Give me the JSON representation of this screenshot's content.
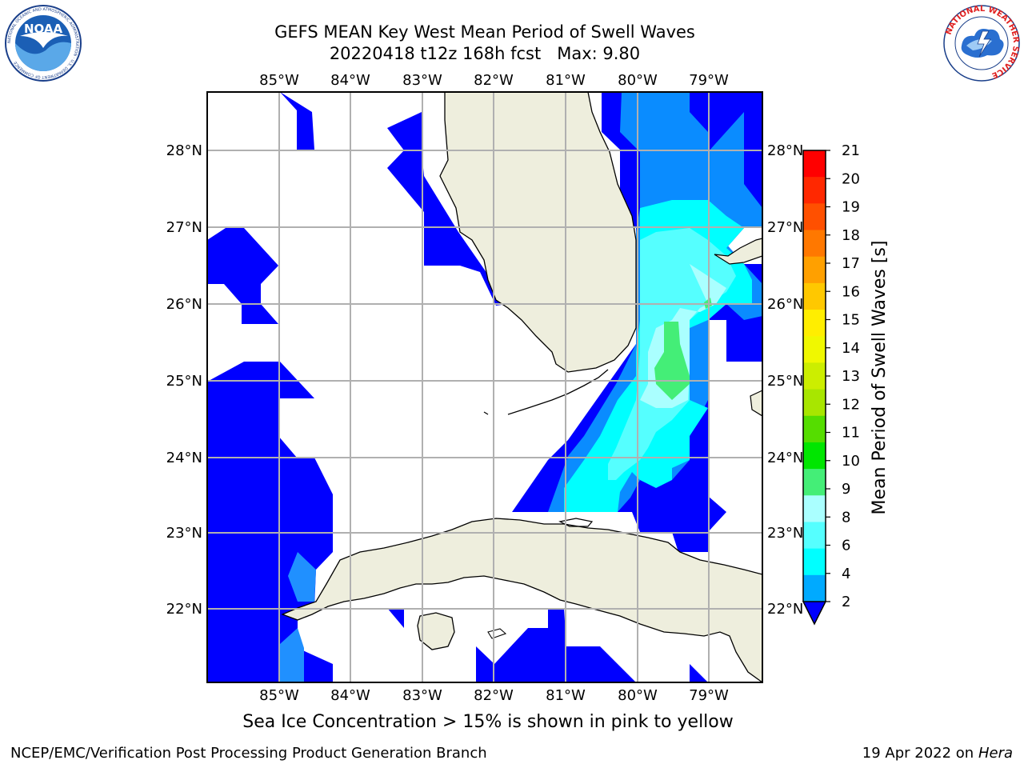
{
  "header": {
    "title_line1": "GEFS MEAN Key West Mean Period of Swell Waves",
    "title_line2": "20220418 t12z 168h fcst   Max: 9.80"
  },
  "logos": {
    "left_text": "NOAA",
    "left_ring_text": "NATIONAL OCEANIC AND ATMOSPHERIC ADMINISTRATION · U.S. DEPARTMENT OF COMMERCE",
    "right_ring_text": "NATIONAL WEATHER SERVICE"
  },
  "map": {
    "lon_labels": [
      "85°W",
      "84°W",
      "83°W",
      "82°W",
      "81°W",
      "80°W",
      "79°W"
    ],
    "lat_labels": [
      "28°N",
      "27°N",
      "26°N",
      "25°N",
      "24°N",
      "23°N",
      "22°N"
    ],
    "colors": {
      "land": "#eeeedd",
      "coast": "#000000",
      "grid": "#b0b0b0"
    }
  },
  "colorbar": {
    "label": "Mean Period of Swell Waves [s]",
    "ticks": [
      "21",
      "20",
      "19",
      "18",
      "17",
      "16",
      "15",
      "14",
      "13",
      "12",
      "11",
      "10",
      "9",
      "8",
      "6",
      "4",
      "2"
    ],
    "colors": [
      "#ff0000",
      "#ff2800",
      "#ff5000",
      "#ff7800",
      "#ffa000",
      "#ffc800",
      "#ffee00",
      "#f0f800",
      "#ccee00",
      "#a8e600",
      "#55dd00",
      "#00e600",
      "#44ee77",
      "#aaffff",
      "#55ffff",
      "#00ffff",
      "#00aaff",
      "#0050ff"
    ],
    "under_color": "#0000ff"
  },
  "caption": "Sea Ice Concentration > 15% is shown in pink to yellow",
  "footer": {
    "left": "NCEP/EMC/Verification Post Processing Product Generation Branch",
    "right_date": "19 Apr 2022 on",
    "right_host": "Hera"
  }
}
